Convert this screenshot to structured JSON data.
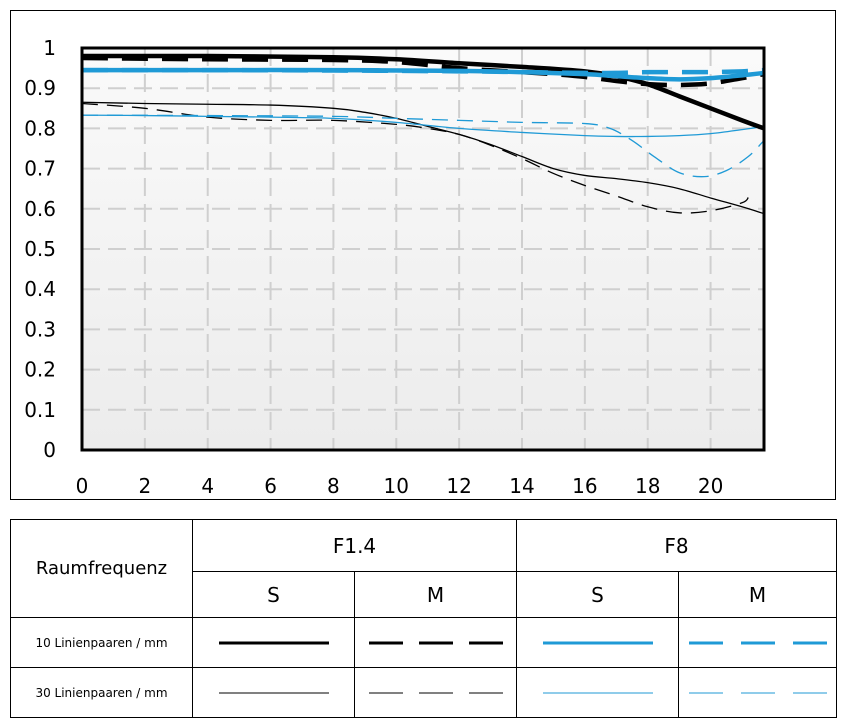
{
  "chart_data": {
    "type": "line",
    "title": "",
    "xlabel": "",
    "ylabel": "",
    "xlim": [
      0,
      21.7
    ],
    "ylim": [
      0,
      1
    ],
    "x_ticks": [
      "0",
      "2",
      "4",
      "6",
      "8",
      "10",
      "12",
      "14",
      "16",
      "18",
      "20"
    ],
    "y_ticks": [
      "0",
      "0.1",
      "0.2",
      "0.3",
      "0.4",
      "0.5",
      "0.6",
      "0.7",
      "0.8",
      "0.9",
      "1"
    ],
    "grid": true,
    "series": [
      {
        "name": "10 Linienpaaren / mm, F1.4, S",
        "color": "#000000",
        "weight": "thick",
        "dash": "solid",
        "x": [
          0,
          4,
          8,
          10,
          12,
          14,
          16,
          17,
          18,
          19,
          20,
          21,
          21.7
        ],
        "y": [
          0.98,
          0.98,
          0.977,
          0.972,
          0.962,
          0.953,
          0.942,
          0.93,
          0.91,
          0.88,
          0.85,
          0.82,
          0.8
        ]
      },
      {
        "name": "10 Linienpaaren / mm, F1.4, M",
        "color": "#000000",
        "weight": "thick",
        "dash": "dashed",
        "x": [
          0,
          4,
          8,
          10,
          12,
          14,
          15,
          16,
          17,
          18,
          19,
          20,
          21,
          21.7
        ],
        "y": [
          0.975,
          0.972,
          0.97,
          0.965,
          0.95,
          0.94,
          0.935,
          0.928,
          0.918,
          0.91,
          0.908,
          0.912,
          0.925,
          0.935
        ]
      },
      {
        "name": "10 Linienpaaren / mm, F8, S",
        "color": "#1f9ad6",
        "weight": "thick",
        "dash": "solid",
        "x": [
          0,
          4,
          8,
          12,
          14,
          16,
          17,
          18,
          19,
          20,
          21,
          21.7
        ],
        "y": [
          0.945,
          0.945,
          0.945,
          0.943,
          0.94,
          0.935,
          0.93,
          0.925,
          0.922,
          0.925,
          0.932,
          0.938
        ]
      },
      {
        "name": "10 Linienpaaren / mm, F8, M",
        "color": "#1f9ad6",
        "weight": "thick",
        "dash": "dashed",
        "x": [
          0,
          4,
          8,
          12,
          14,
          16,
          17,
          18,
          19,
          20,
          21,
          21.7
        ],
        "y": [
          0.945,
          0.945,
          0.944,
          0.942,
          0.94,
          0.938,
          0.938,
          0.94,
          0.94,
          0.94,
          0.942,
          0.945
        ]
      },
      {
        "name": "30 Linienpaaren / mm, F1.4, S",
        "color": "#000000",
        "weight": "thin",
        "dash": "solid",
        "x": [
          0,
          2,
          4,
          6,
          8,
          9,
          10,
          11,
          12,
          13,
          14,
          15,
          16,
          17,
          18,
          19,
          20,
          21,
          21.7
        ],
        "y": [
          0.865,
          0.862,
          0.86,
          0.858,
          0.85,
          0.84,
          0.825,
          0.805,
          0.785,
          0.76,
          0.73,
          0.7,
          0.683,
          0.675,
          0.665,
          0.65,
          0.627,
          0.605,
          0.588
        ]
      },
      {
        "name": "30 Linienpaaren / mm, F1.4, M",
        "color": "#000000",
        "weight": "thin",
        "dash": "dashed",
        "x": [
          0,
          2,
          4,
          6,
          8,
          10,
          11,
          12,
          13,
          14,
          15,
          16,
          17,
          18,
          19,
          20,
          21,
          21.2
        ],
        "y": [
          0.862,
          0.85,
          0.828,
          0.82,
          0.82,
          0.81,
          0.8,
          0.785,
          0.758,
          0.725,
          0.688,
          0.658,
          0.632,
          0.605,
          0.59,
          0.595,
          0.615,
          0.628
        ]
      },
      {
        "name": "30 Linienpaaren / mm, F8, S",
        "color": "#1f9ad6",
        "weight": "thin",
        "dash": "solid",
        "x": [
          0,
          2,
          4,
          6,
          8,
          10,
          12,
          14,
          16,
          17,
          18,
          19,
          20,
          21,
          21.7
        ],
        "y": [
          0.833,
          0.832,
          0.83,
          0.828,
          0.825,
          0.815,
          0.8,
          0.79,
          0.782,
          0.78,
          0.78,
          0.782,
          0.787,
          0.797,
          0.805
        ]
      },
      {
        "name": "30 Linienpaaren / mm, F8, M",
        "color": "#1f9ad6",
        "weight": "thin",
        "dash": "dashed",
        "x": [
          0,
          4,
          8,
          10,
          12,
          14,
          16,
          16.8,
          17.5,
          18.2,
          19,
          19.8,
          20.5,
          21.2,
          21.7
        ],
        "y": [
          0.833,
          0.832,
          0.83,
          0.825,
          0.82,
          0.815,
          0.812,
          0.8,
          0.77,
          0.73,
          0.69,
          0.68,
          0.695,
          0.73,
          0.77
        ]
      }
    ]
  },
  "legend": {
    "raumfrequenz_label": "Raumfrequenz",
    "aperture_1": "F1.4",
    "aperture_2": "F8",
    "col_s": "S",
    "col_m": "M",
    "row_10": "10 Linienpaaren / mm",
    "row_30": "30 Linienpaaren / mm"
  },
  "colors": {
    "black": "#000000",
    "blue": "#1f9ad6",
    "grid": "#cfcfcf",
    "plot_bg": "#f4f4f4"
  }
}
